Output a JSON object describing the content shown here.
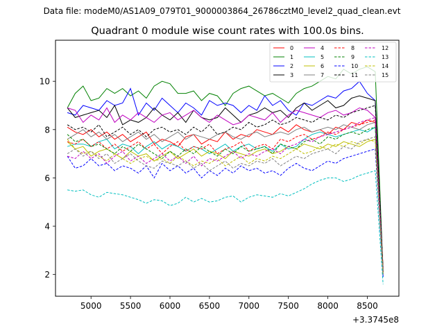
{
  "header_text": "Data file: modeM0/AS1A09_079T01_9000003864_26786cztM0_level2_quad_clean.evt",
  "chart_data": {
    "type": "line",
    "title": "Quadrant 0 module wise count rates with 100.0s bins.",
    "xlabel": "",
    "ylabel": "",
    "x_offset_label": "+3.3745e8",
    "xlim": [
      4550,
      8900
    ],
    "ylim": [
      1.1,
      11.7
    ],
    "x_ticks": [
      5000,
      5500,
      6000,
      6500,
      7000,
      7500,
      8000,
      8500
    ],
    "y_ticks": [
      2,
      4,
      6,
      8,
      10
    ],
    "x_tick_labels": [
      "5000",
      "5500",
      "6000",
      "6500",
      "7000",
      "7500",
      "8000",
      "8500"
    ],
    "y_tick_labels": [
      "2",
      "4",
      "6",
      "8",
      "10"
    ],
    "legend_position": "top-right",
    "x": [
      4700,
      4800,
      4900,
      5000,
      5100,
      5200,
      5300,
      5400,
      5500,
      5600,
      5700,
      5800,
      5900,
      6000,
      6100,
      6200,
      6300,
      6400,
      6500,
      6600,
      6700,
      6800,
      6900,
      7000,
      7100,
      7200,
      7300,
      7400,
      7500,
      7600,
      7700,
      7800,
      7900,
      8000,
      8100,
      8200,
      8300,
      8400,
      8500,
      8600,
      8700
    ],
    "series": [
      {
        "name": "0",
        "color": "#ff0000",
        "dash": "solid",
        "values": [
          8.1,
          7.9,
          7.8,
          8.0,
          7.7,
          7.9,
          7.6,
          7.8,
          7.5,
          7.7,
          7.9,
          7.4,
          7.6,
          7.5,
          7.3,
          7.7,
          7.8,
          7.4,
          7.6,
          7.5,
          7.9,
          7.6,
          7.8,
          7.7,
          8.0,
          7.9,
          7.8,
          8.1,
          7.9,
          8.2,
          8.0,
          7.9,
          8.0,
          7.8,
          8.1,
          8.0,
          8.3,
          8.2,
          8.4,
          8.3,
          2.3
        ]
      },
      {
        "name": "1",
        "color": "#008000",
        "dash": "solid",
        "values": [
          8.9,
          9.5,
          9.8,
          9.2,
          9.3,
          9.7,
          9.5,
          9.7,
          9.4,
          9.6,
          9.3,
          9.8,
          10.0,
          9.9,
          9.5,
          9.5,
          9.6,
          9.2,
          9.5,
          9.4,
          9.0,
          9.5,
          9.7,
          9.8,
          9.6,
          9.4,
          9.5,
          9.3,
          9.1,
          9.5,
          9.7,
          9.8,
          10.0,
          10.2,
          10.1,
          10.5,
          10.3,
          10.5,
          10.6,
          10.4,
          2.1
        ]
      },
      {
        "name": "2",
        "color": "#0000ff",
        "dash": "solid",
        "values": [
          8.7,
          8.6,
          9.0,
          8.9,
          8.8,
          9.2,
          9.0,
          9.1,
          9.7,
          8.6,
          9.1,
          8.8,
          9.3,
          9.0,
          8.7,
          9.1,
          8.9,
          8.6,
          9.2,
          9.0,
          9.1,
          9.0,
          8.7,
          9.0,
          8.8,
          9.4,
          9.0,
          9.2,
          8.8,
          8.6,
          9.1,
          9.0,
          9.2,
          9.4,
          9.3,
          9.6,
          9.7,
          10.0,
          9.5,
          9.2,
          2.0
        ]
      },
      {
        "name": "3",
        "color": "#000000",
        "dash": "solid",
        "values": [
          8.9,
          8.5,
          8.6,
          8.7,
          8.8,
          8.5,
          9.0,
          8.2,
          8.4,
          8.3,
          8.5,
          8.9,
          8.6,
          8.4,
          8.7,
          8.3,
          8.8,
          8.5,
          8.4,
          8.5,
          8.9,
          8.6,
          8.3,
          8.6,
          8.7,
          8.9,
          8.7,
          8.8,
          8.5,
          8.9,
          9.1,
          8.8,
          9.0,
          9.2,
          8.9,
          9.0,
          9.3,
          9.4,
          9.3,
          9.2,
          2.2
        ]
      },
      {
        "name": "4",
        "color": "#bf00bf",
        "dash": "solid",
        "values": [
          8.9,
          8.8,
          8.3,
          8.6,
          8.4,
          8.9,
          8.3,
          8.6,
          8.4,
          8.7,
          8.5,
          8.3,
          8.6,
          8.7,
          8.4,
          8.6,
          8.8,
          8.5,
          8.3,
          8.6,
          8.4,
          8.2,
          8.3,
          8.6,
          8.5,
          8.4,
          8.7,
          8.3,
          8.6,
          8.8,
          8.7,
          8.6,
          8.5,
          8.7,
          8.8,
          8.6,
          8.7,
          8.9,
          8.8,
          8.5,
          2.1
        ]
      },
      {
        "name": "5",
        "color": "#00bfbf",
        "dash": "solid",
        "values": [
          7.3,
          7.4,
          7.4,
          7.3,
          7.5,
          7.6,
          7.2,
          7.4,
          7.3,
          7.0,
          7.3,
          7.5,
          7.2,
          7.4,
          7.3,
          7.1,
          7.3,
          7.2,
          7.0,
          7.2,
          7.4,
          7.1,
          7.3,
          7.4,
          7.2,
          7.3,
          7.1,
          7.4,
          7.2,
          7.3,
          7.6,
          7.8,
          7.9,
          7.8,
          7.7,
          7.8,
          7.9,
          8.0,
          7.9,
          8.1,
          1.9
        ]
      },
      {
        "name": "6",
        "color": "#bfbf00",
        "dash": "solid",
        "values": [
          7.5,
          7.2,
          7.3,
          6.9,
          7.1,
          7.2,
          7.0,
          6.8,
          7.1,
          6.9,
          7.0,
          6.7,
          6.9,
          7.1,
          6.8,
          7.0,
          7.2,
          6.9,
          7.1,
          7.0,
          6.8,
          7.1,
          7.0,
          6.9,
          7.1,
          7.2,
          7.0,
          7.1,
          7.3,
          7.2,
          7.4,
          7.3,
          7.2,
          7.4,
          7.3,
          7.5,
          7.4,
          7.3,
          7.5,
          7.6,
          2.0
        ]
      },
      {
        "name": "7",
        "color": "#808080",
        "dash": "solid",
        "values": [
          7.6,
          7.8,
          8.0,
          7.7,
          7.9,
          7.6,
          7.8,
          7.5,
          7.7,
          7.9,
          7.6,
          7.8,
          7.5,
          7.7,
          7.9,
          7.6,
          7.8,
          7.7,
          7.6,
          7.8,
          7.9,
          7.7,
          7.6,
          7.8,
          7.9,
          7.7,
          7.8,
          7.9,
          7.8,
          8.0,
          8.1,
          7.9,
          8.0,
          8.1,
          8.0,
          8.2,
          8.1,
          8.0,
          8.2,
          8.3,
          2.2
        ]
      },
      {
        "name": "8",
        "color": "#ff0000",
        "dash": "dashed",
        "values": [
          7.5,
          7.4,
          7.6,
          7.3,
          7.5,
          7.2,
          7.4,
          7.1,
          7.3,
          7.5,
          7.2,
          7.4,
          7.0,
          7.3,
          7.5,
          7.1,
          7.3,
          7.2,
          7.4,
          7.0,
          7.2,
          7.3,
          7.5,
          7.1,
          7.3,
          7.4,
          7.2,
          7.6,
          7.5,
          7.7,
          7.8,
          7.6,
          7.7,
          7.9,
          7.8,
          8.0,
          8.1,
          8.2,
          8.3,
          8.4,
          2.1
        ]
      },
      {
        "name": "9",
        "color": "#008000",
        "dash": "dashed",
        "values": [
          7.8,
          7.5,
          7.6,
          7.3,
          7.4,
          7.2,
          7.0,
          7.3,
          7.1,
          7.4,
          7.2,
          7.0,
          6.8,
          7.1,
          6.9,
          7.2,
          7.0,
          7.3,
          7.1,
          6.9,
          7.2,
          7.0,
          7.3,
          7.1,
          7.2,
          7.3,
          7.0,
          7.4,
          7.3,
          7.2,
          7.5,
          7.6,
          7.4,
          7.7,
          7.6,
          7.8,
          7.9,
          7.8,
          8.0,
          8.1,
          2.0
        ]
      },
      {
        "name": "10",
        "color": "#0000ff",
        "dash": "dashed",
        "values": [
          6.9,
          6.4,
          6.5,
          6.8,
          6.5,
          6.6,
          6.3,
          6.5,
          6.4,
          6.2,
          6.5,
          6.0,
          6.6,
          6.3,
          6.5,
          6.2,
          6.4,
          6.0,
          6.3,
          6.1,
          6.4,
          6.2,
          6.5,
          6.3,
          6.4,
          6.2,
          6.3,
          6.1,
          6.4,
          6.6,
          6.4,
          6.3,
          6.5,
          6.7,
          6.6,
          6.8,
          6.9,
          7.0,
          7.1,
          7.2,
          1.9
        ]
      },
      {
        "name": "11",
        "color": "#000000",
        "dash": "dashed",
        "values": [
          8.2,
          8.0,
          8.1,
          7.9,
          8.2,
          7.7,
          7.9,
          8.1,
          7.8,
          8.0,
          7.7,
          8.0,
          8.1,
          7.9,
          8.0,
          7.8,
          8.1,
          7.9,
          8.2,
          7.8,
          7.9,
          8.1,
          8.0,
          8.3,
          8.1,
          8.2,
          8.4,
          8.2,
          8.3,
          8.5,
          8.4,
          8.3,
          8.5,
          8.4,
          8.6,
          8.5,
          8.7,
          8.8,
          8.9,
          9.0,
          2.1
        ]
      },
      {
        "name": "12",
        "color": "#bf00bf",
        "dash": "dashed",
        "values": [
          6.9,
          6.8,
          7.1,
          6.8,
          7.0,
          6.6,
          6.9,
          7.1,
          6.7,
          6.9,
          6.6,
          6.8,
          7.0,
          6.7,
          6.9,
          6.6,
          6.9,
          6.5,
          6.8,
          6.7,
          6.9,
          7.1,
          6.8,
          7.0,
          6.9,
          7.1,
          7.2,
          7.0,
          7.3,
          7.4,
          7.6,
          7.5,
          7.7,
          7.8,
          7.9,
          8.0,
          8.1,
          8.3,
          8.4,
          8.5,
          2.0
        ]
      },
      {
        "name": "13",
        "color": "#00bfbf",
        "dash": "dashed",
        "values": [
          5.5,
          5.45,
          5.5,
          5.3,
          5.2,
          5.4,
          5.35,
          5.3,
          5.2,
          5.1,
          4.95,
          5.1,
          5.05,
          4.85,
          4.95,
          5.2,
          5.0,
          5.15,
          5.0,
          5.05,
          5.2,
          5.25,
          5.0,
          5.2,
          5.3,
          5.25,
          5.2,
          5.35,
          5.25,
          5.4,
          5.55,
          5.75,
          5.9,
          6.0,
          6.0,
          5.85,
          5.95,
          6.1,
          6.2,
          6.3,
          1.6
        ]
      },
      {
        "name": "14",
        "color": "#bfbf00",
        "dash": "dashed",
        "values": [
          7.6,
          7.2,
          7.0,
          7.1,
          6.9,
          6.7,
          7.0,
          6.8,
          6.6,
          6.8,
          6.9,
          6.7,
          6.8,
          6.6,
          6.9,
          6.7,
          6.5,
          6.7,
          6.6,
          6.8,
          6.5,
          6.7,
          6.9,
          6.6,
          6.8,
          6.7,
          6.9,
          6.8,
          7.0,
          7.2,
          7.0,
          7.1,
          7.3,
          7.2,
          7.4,
          7.3,
          7.5,
          7.4,
          7.6,
          7.5,
          2.0
        ]
      },
      {
        "name": "15",
        "color": "#808080",
        "dash": "dashed",
        "values": [
          7.0,
          7.2,
          6.9,
          7.1,
          6.8,
          7.0,
          6.6,
          6.8,
          7.0,
          6.7,
          6.5,
          6.4,
          6.7,
          6.6,
          6.5,
          6.7,
          6.4,
          6.6,
          6.3,
          6.5,
          6.7,
          6.4,
          6.6,
          6.5,
          6.7,
          6.6,
          6.8,
          6.5,
          6.7,
          6.9,
          6.8,
          7.0,
          7.1,
          7.2,
          7.0,
          7.3,
          7.2,
          7.5,
          7.6,
          7.7,
          2.0
        ]
      }
    ]
  }
}
